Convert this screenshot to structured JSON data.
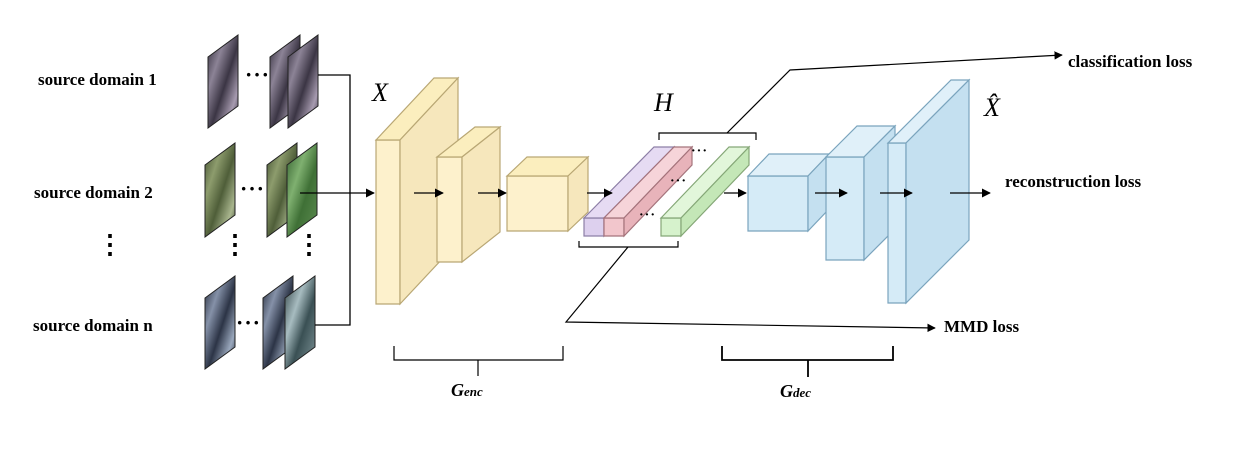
{
  "inputs": {
    "rows": [
      {
        "label": "source domain 1"
      },
      {
        "label": "source domain 2"
      },
      {
        "label": "source domain n"
      }
    ],
    "ellipsis_h": "···",
    "ellipsis_v": "⋮"
  },
  "symbols": {
    "x": "X",
    "h": "H",
    "x_hat": "X̂",
    "dots": "···"
  },
  "brackets": {
    "enc_main": "G",
    "enc_sub": "enc",
    "dec_main": "G",
    "dec_sub": "dec"
  },
  "losses": {
    "classification": "classification loss",
    "reconstruction": "reconstruction loss",
    "mmd": "MMD loss"
  },
  "colors": {
    "enc_fill": "#fdf1cc",
    "enc_stroke": "#b9a774",
    "dec_fill": "#d5ebf7",
    "dec_stroke": "#7aa4bd",
    "latent_purple": "#ddd0ee",
    "latent_pink": "#f2c6cc",
    "latent_green": "#d6f2cc"
  }
}
